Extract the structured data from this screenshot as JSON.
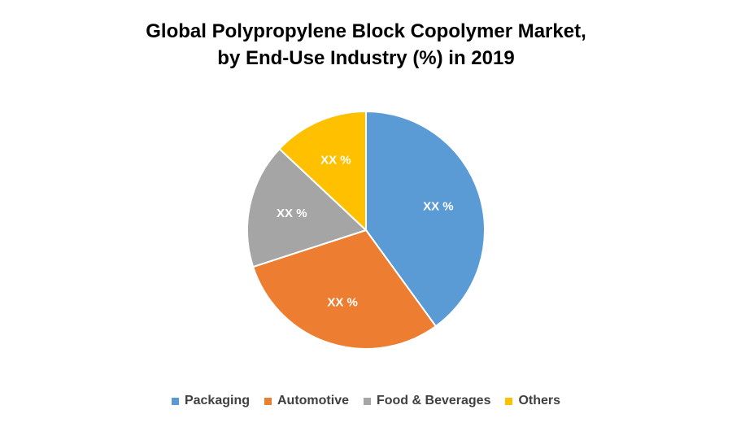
{
  "chart_data": {
    "type": "pie",
    "title": "Global Polypropylene Block Copolymer Market, by End-Use Industry (%) in 2019",
    "title_lines": [
      "Global Polypropylene Block Copolymer Market,",
      "by End-Use Industry (%) in 2019"
    ],
    "slices": [
      {
        "label": "Packaging",
        "value": 40,
        "color": "#5B9BD5",
        "data_label": "XX %"
      },
      {
        "label": "Automotive",
        "value": 30,
        "color": "#ED7D31",
        "data_label": "XX %"
      },
      {
        "label": "Food & Beverages",
        "value": 17,
        "color": "#A5A5A5",
        "data_label": "XX %"
      },
      {
        "label": "Others",
        "value": 13,
        "color": "#FFC000",
        "data_label": "XX %"
      }
    ],
    "legend_position": "bottom"
  }
}
